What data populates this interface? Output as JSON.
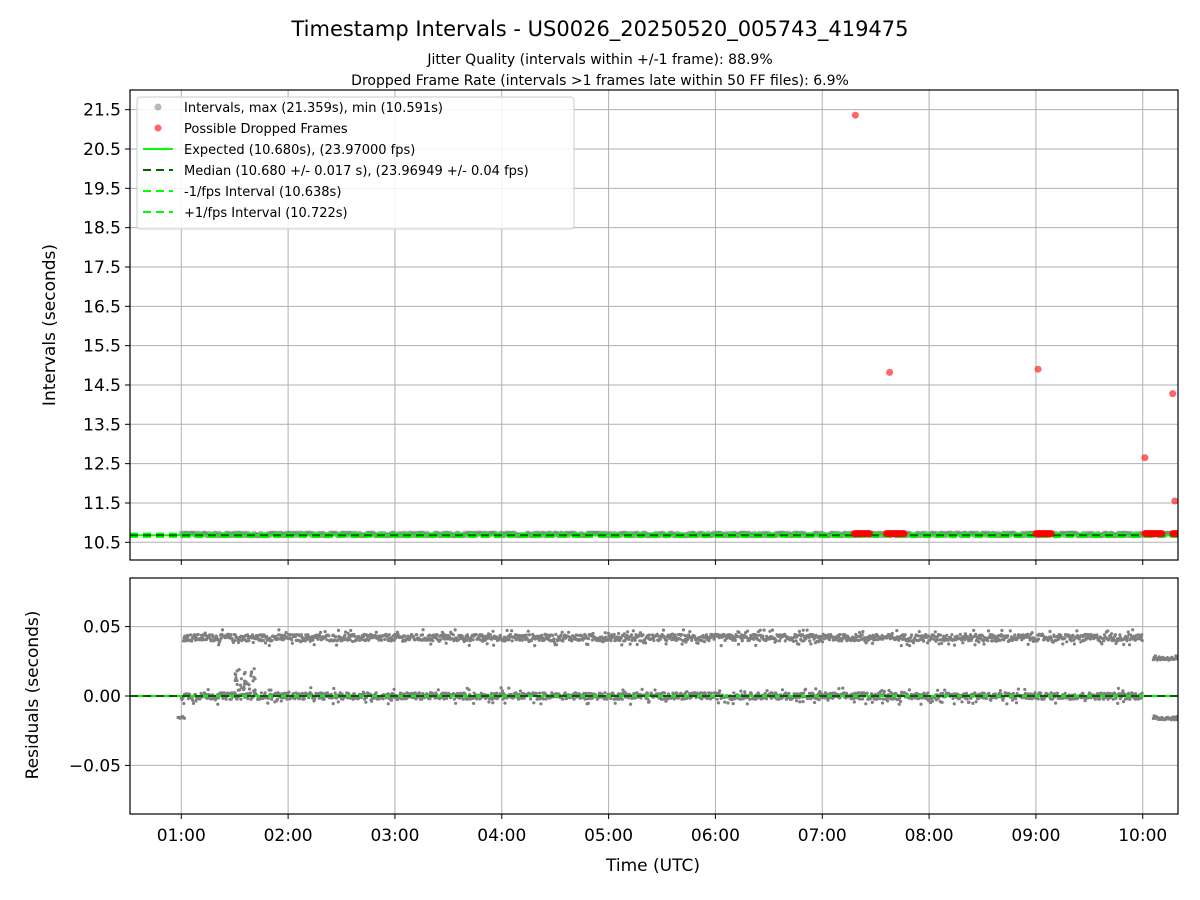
{
  "chart_data": {
    "type": "scatter",
    "title": "Timestamp Intervals - US0026_20250520_005743_419475",
    "subtitle_lines": [
      "Jitter Quality (intervals within +/-1 frame): 88.9%",
      "Dropped Frame Rate (intervals >1 frames late within 50 FF files): 6.9%"
    ],
    "colors": {
      "intervals": "#808080",
      "dropped": "#ff0000",
      "expected": "#00ff00",
      "median": "#006400",
      "grid": "#b0b0b0"
    },
    "panels": [
      {
        "name": "intervals",
        "ylabel": "Intervals (seconds)",
        "ylim": [
          10.05,
          22.0
        ],
        "yticks": [
          10.5,
          11.5,
          12.5,
          13.5,
          14.5,
          15.5,
          16.5,
          17.5,
          18.5,
          19.5,
          20.5,
          21.5
        ],
        "ytick_labels": [
          "10.5",
          "11.5",
          "12.5",
          "13.5",
          "14.5",
          "15.5",
          "16.5",
          "17.5",
          "18.5",
          "19.5",
          "20.5",
          "21.5"
        ],
        "grid": true,
        "legend_location": "upper-left",
        "legend": [
          {
            "label": "Intervals, max (21.359s), min (10.591s)",
            "kind": "marker-gray"
          },
          {
            "label": "Possible Dropped Frames",
            "kind": "marker-red"
          },
          {
            "label": "Expected (10.680s), (23.97000 fps)",
            "kind": "line-solid-green"
          },
          {
            "label": "Median (10.680 +/- 0.017 s), (23.96949 +/- 0.04 fps)",
            "kind": "line-dashed-darkgreen"
          },
          {
            "label": "-1/fps Interval (10.638s)",
            "kind": "line-dashed-green"
          },
          {
            "label": "+1/fps Interval (10.722s)",
            "kind": "line-dashed-green"
          }
        ],
        "lines": {
          "expected": 10.68,
          "median": 10.68,
          "minus_fps": 10.638,
          "plus_fps": 10.722
        },
        "interval_band": {
          "start_hour": 1.0,
          "end_hour": 10.33,
          "base": 10.68,
          "upper": 10.722
        },
        "dropped_clusters": [
          {
            "start_hour": 7.3,
            "end_hour": 7.45,
            "value": 10.72
          },
          {
            "start_hour": 7.6,
            "end_hour": 7.77,
            "value": 10.72
          },
          {
            "start_hour": 9.0,
            "end_hour": 9.15,
            "value": 10.72
          },
          {
            "start_hour": 10.02,
            "end_hour": 10.18,
            "value": 10.72
          },
          {
            "start_hour": 10.28,
            "end_hour": 10.33,
            "value": 10.72
          }
        ],
        "dropped_outliers": [
          {
            "hour": 7.31,
            "value": 21.359
          },
          {
            "hour": 7.63,
            "value": 14.82
          },
          {
            "hour": 9.02,
            "value": 14.9
          },
          {
            "hour": 10.02,
            "value": 12.65
          },
          {
            "hour": 10.28,
            "value": 14.28
          },
          {
            "hour": 10.3,
            "value": 11.55
          }
        ]
      },
      {
        "name": "residuals",
        "ylabel": "Residuals (seconds)",
        "ylim": [
          -0.085,
          0.085
        ],
        "yticks": [
          -0.05,
          0.0,
          0.05
        ],
        "ytick_labels": [
          "−0.05",
          "0.00",
          "0.05"
        ],
        "grid": true,
        "zero_line": 0.0,
        "bands": [
          {
            "start_hour": 1.02,
            "end_hour": 10.0,
            "center": 0.042,
            "spread": 0.006
          },
          {
            "start_hour": 1.0,
            "end_hour": 10.0,
            "center": 0.0,
            "spread": 0.006
          },
          {
            "start_hour": 10.1,
            "end_hour": 10.33,
            "center": -0.016,
            "spread": 0.003
          },
          {
            "start_hour": 10.1,
            "end_hour": 10.33,
            "center": 0.027,
            "spread": 0.003
          },
          {
            "start_hour": 0.97,
            "end_hour": 1.03,
            "center": -0.016,
            "spread": 0.002
          }
        ]
      }
    ],
    "xlabel": "Time (UTC)",
    "xlim_hours": [
      0.52,
      10.33
    ],
    "xticks": [
      1,
      2,
      3,
      4,
      5,
      6,
      7,
      8,
      9,
      10
    ],
    "xtick_labels": [
      "01:00",
      "02:00",
      "03:00",
      "04:00",
      "05:00",
      "06:00",
      "07:00",
      "08:00",
      "09:00",
      "10:00"
    ]
  }
}
